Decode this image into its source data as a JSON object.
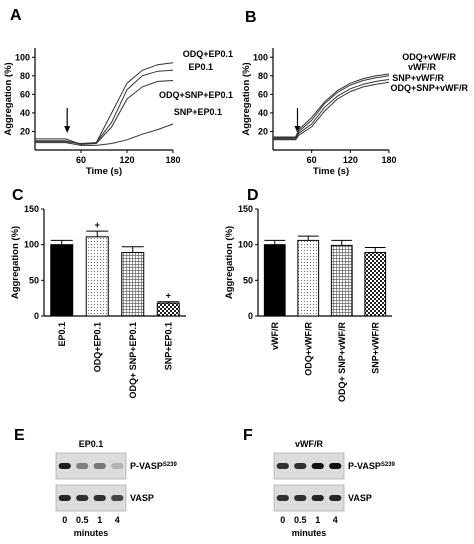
{
  "panels": {
    "A": "A",
    "B": "B",
    "C": "C",
    "D": "D",
    "E": "E",
    "F": "F"
  },
  "chart_data": [
    {
      "panel": "A",
      "type": "line",
      "xlabel": "Time (s)",
      "ylabel": "Aggregation (%)",
      "xlim": [
        0,
        180
      ],
      "ylim": [
        0,
        110
      ],
      "xticks": [
        60,
        120,
        180
      ],
      "yticks": [
        20,
        40,
        60,
        80,
        100
      ],
      "xtick_labels": [
        "60",
        "120",
        "180"
      ],
      "ytick_labels": [
        "20",
        "40",
        "60",
        "80",
        "100"
      ],
      "arrow_at_x": 42,
      "series": [
        {
          "name": "ODQ+EP0.1",
          "x": [
            0,
            40,
            60,
            80,
            100,
            120,
            140,
            160,
            180
          ],
          "y": [
            10,
            10,
            6,
            8,
            40,
            72,
            86,
            92,
            94
          ]
        },
        {
          "name": "EP0.1",
          "x": [
            0,
            40,
            60,
            80,
            100,
            120,
            140,
            160,
            180
          ],
          "y": [
            9,
            9,
            7,
            8,
            30,
            65,
            80,
            85,
            86
          ]
        },
        {
          "name": "ODQ+SNP+EP0.1",
          "x": [
            0,
            40,
            60,
            80,
            100,
            120,
            140,
            160,
            180
          ],
          "y": [
            12,
            12,
            6,
            7,
            25,
            55,
            68,
            74,
            75
          ]
        },
        {
          "name": "SNP+EP0.1",
          "x": [
            0,
            40,
            60,
            80,
            100,
            120,
            140,
            160,
            180
          ],
          "y": [
            8,
            8,
            5,
            5,
            7,
            11,
            17,
            22,
            28
          ]
        }
      ]
    },
    {
      "panel": "B",
      "type": "line",
      "xlabel": "Time (s)",
      "ylabel": "Aggregation (%)",
      "xlim": [
        0,
        180
      ],
      "ylim": [
        0,
        110
      ],
      "xticks": [
        60,
        120,
        180
      ],
      "yticks": [
        20,
        40,
        60,
        80,
        100
      ],
      "xtick_labels": [
        "60",
        "120",
        "180"
      ],
      "ytick_labels": [
        "20",
        "40",
        "60",
        "80",
        "100"
      ],
      "arrow_at_x": 38,
      "series": [
        {
          "name": "ODQ+vWF/R",
          "x": [
            0,
            35,
            40,
            60,
            80,
            100,
            120,
            140,
            160,
            180
          ],
          "y": [
            14,
            14,
            22,
            35,
            52,
            64,
            72,
            77,
            80,
            82
          ]
        },
        {
          "name": "vWF/R",
          "x": [
            0,
            35,
            40,
            60,
            80,
            100,
            120,
            140,
            160,
            180
          ],
          "y": [
            13,
            13,
            20,
            32,
            50,
            62,
            70,
            75,
            78,
            80
          ]
        },
        {
          "name": "SNP+vWF/R",
          "x": [
            0,
            35,
            40,
            60,
            80,
            100,
            120,
            140,
            160,
            180
          ],
          "y": [
            12,
            12,
            18,
            28,
            46,
            58,
            66,
            71,
            74,
            76
          ]
        },
        {
          "name": "ODQ+SNP+vWF/R",
          "x": [
            0,
            35,
            40,
            60,
            80,
            100,
            120,
            140,
            160,
            180
          ],
          "y": [
            11,
            11,
            16,
            25,
            42,
            55,
            63,
            68,
            71,
            73
          ]
        }
      ]
    },
    {
      "panel": "C",
      "type": "bar",
      "ylabel": "Aggregation (%)",
      "ylim": [
        0,
        150
      ],
      "yticks": [
        0,
        50,
        100,
        150
      ],
      "ytick_labels": [
        "0",
        "50",
        "100",
        "150"
      ],
      "categories": [
        "EP0.1",
        "ODQ+EP0.1",
        "ODQ+ SNP+EP0.1",
        "SNP+EP0.1"
      ],
      "values": [
        100,
        111,
        89,
        18
      ],
      "errors": [
        6,
        8,
        8,
        2
      ],
      "patterns": [
        "solid",
        "dots",
        "grid",
        "checker"
      ],
      "markers": [
        "",
        "+",
        "",
        "+"
      ]
    },
    {
      "panel": "D",
      "type": "bar",
      "ylabel": "Aggregation (%)",
      "ylim": [
        0,
        150
      ],
      "yticks": [
        0,
        50,
        100,
        150
      ],
      "ytick_labels": [
        "0",
        "50",
        "100",
        "150"
      ],
      "categories": [
        "vWF/R",
        "ODQ+vWF/R",
        "ODQ+ SNP+vWF/R",
        "SNP+vWF/R"
      ],
      "values": [
        100,
        106,
        99,
        89
      ],
      "errors": [
        6,
        6,
        7,
        7
      ],
      "patterns": [
        "solid",
        "dots",
        "grid",
        "checker"
      ],
      "markers": [
        "",
        "",
        "",
        ""
      ]
    }
  ],
  "blots": {
    "E": {
      "treatment": "EP0.1",
      "bands": [
        "P-VASP",
        "VASP"
      ],
      "superscript": "S239",
      "lanes": [
        "0",
        "0.5",
        "1",
        "4"
      ],
      "xlabel": "minutes",
      "intensities_top": [
        0.95,
        0.45,
        0.5,
        0.2
      ],
      "intensities_bottom": [
        0.9,
        0.85,
        0.85,
        0.75
      ]
    },
    "F": {
      "treatment": "vWF/R",
      "bands": [
        "P-VASP",
        "VASP"
      ],
      "superscript": "S239",
      "lanes": [
        "0",
        "0.5",
        "1",
        "4"
      ],
      "xlabel": "minutes",
      "intensities_top": [
        0.85,
        0.85,
        1.0,
        1.0
      ],
      "intensities_bottom": [
        0.85,
        0.85,
        0.9,
        0.9
      ]
    }
  }
}
